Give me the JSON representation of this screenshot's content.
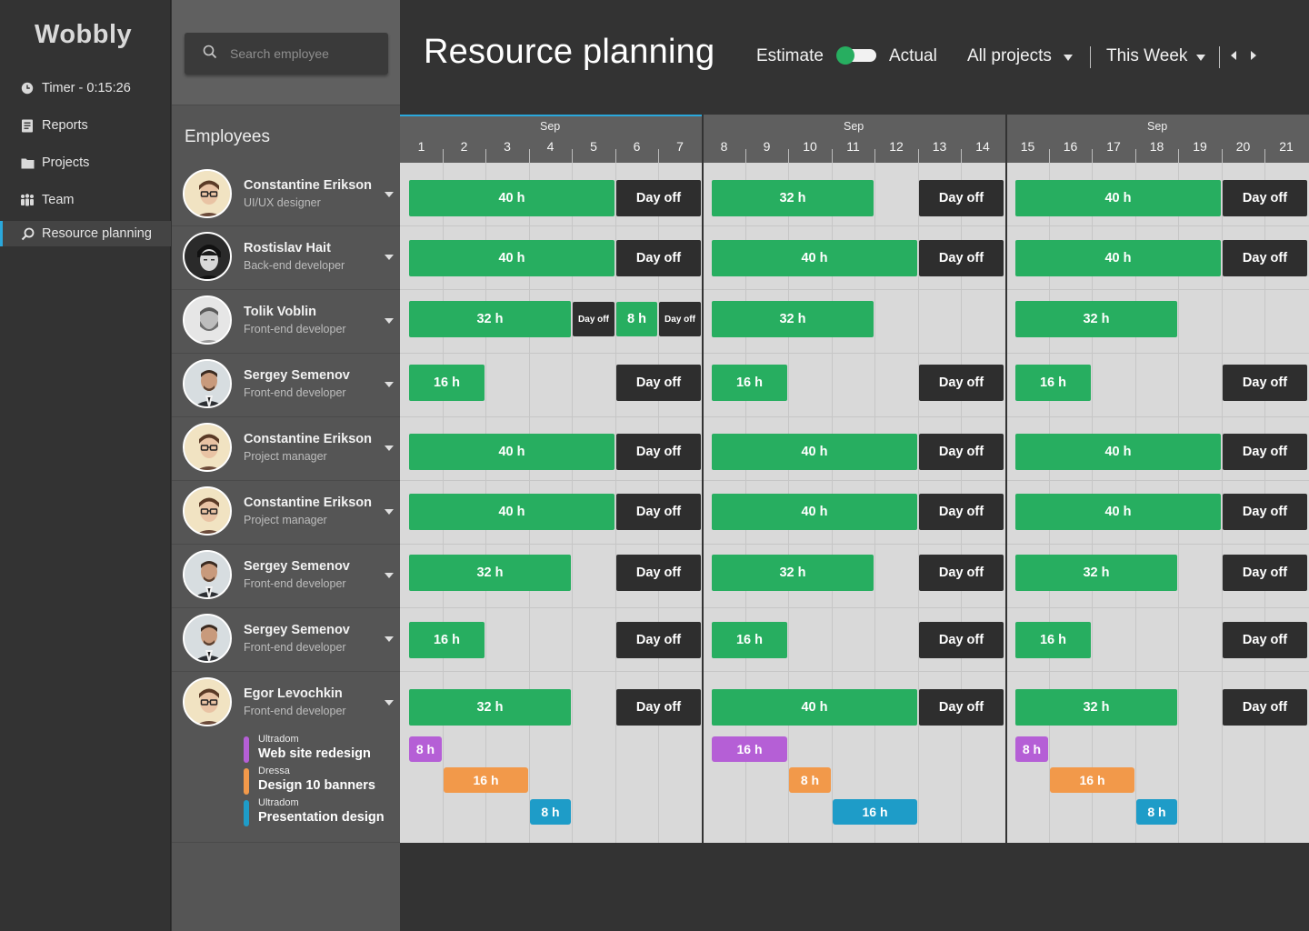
{
  "app": {
    "name": "Wobbly"
  },
  "sidebar": {
    "items": [
      {
        "label": "Timer - 0:15:26",
        "icon": "clock-icon"
      },
      {
        "label": "Reports",
        "icon": "reports-icon"
      },
      {
        "label": "Projects",
        "icon": "folder-icon"
      },
      {
        "label": "Team",
        "icon": "team-icon"
      },
      {
        "label": "Resource planning",
        "icon": "resource-planning-icon",
        "active": true
      }
    ]
  },
  "search": {
    "placeholder": "Search employee"
  },
  "employees_heading": "Employees",
  "header": {
    "title": "Resource planning",
    "estimate_label": "Estimate",
    "actual_label": "Actual",
    "projects_filter": "All projects",
    "period_filter": "This Week"
  },
  "calendar": {
    "months": [
      "Sep",
      "Sep",
      "Sep"
    ],
    "days": [
      "1",
      "2",
      "3",
      "4",
      "5",
      "6",
      "7",
      "8",
      "9",
      "10",
      "11",
      "12",
      "13",
      "14",
      "15",
      "16",
      "17",
      "18",
      "19",
      "20",
      "21"
    ]
  },
  "employees": [
    {
      "name": "Constantine Erikson",
      "role": "UI/UX designer",
      "avatar": "glasses"
    },
    {
      "name": "Rostislav Hait",
      "role": "Back-end developer",
      "avatar": "dark"
    },
    {
      "name": "Tolik Voblin",
      "role": "Front-end developer",
      "avatar": "beard"
    },
    {
      "name": "Sergey Semenov",
      "role": "Front-end developer",
      "avatar": "suit"
    },
    {
      "name": "Constantine Erikson",
      "role": "Project manager",
      "avatar": "glasses"
    },
    {
      "name": "Constantine Erikson",
      "role": "Project manager",
      "avatar": "glasses"
    },
    {
      "name": "Sergey Semenov",
      "role": "Front-end developer",
      "avatar": "suit"
    },
    {
      "name": "Sergey Semenov",
      "role": "Front-end developer",
      "avatar": "suit"
    },
    {
      "name": "Egor Levochkin",
      "role": "Front-end developer",
      "avatar": "glasses",
      "projects": [
        {
          "client": "Ultradom",
          "name": "Web site redesign",
          "color": "#b55fd6"
        },
        {
          "client": "Dressa",
          "name": "Design 10 banners",
          "color": "#f2994a"
        },
        {
          "client": "Ultradom",
          "name": "Presentation design",
          "color": "#1e9cc8"
        }
      ]
    }
  ],
  "colors": {
    "work": "#27ae60",
    "day_off": "#2e2e2e",
    "accent": "#2aa8dc"
  },
  "schedule": [
    [
      {
        "from": 1,
        "to": 5,
        "text": "40 h",
        "kind": "work"
      },
      {
        "from": 6,
        "to": 7,
        "text": "Day off",
        "kind": "off"
      },
      {
        "from": 8,
        "to": 11,
        "text": "32 h",
        "kind": "work"
      },
      {
        "from": 13,
        "to": 14,
        "text": "Day off",
        "kind": "off"
      },
      {
        "from": 15,
        "to": 19,
        "text": "40 h",
        "kind": "work"
      },
      {
        "from": 20,
        "to": 21,
        "text": "Day off",
        "kind": "off"
      }
    ],
    [
      {
        "from": 1,
        "to": 5,
        "text": "40 h",
        "kind": "work"
      },
      {
        "from": 6,
        "to": 7,
        "text": "Day off",
        "kind": "off"
      },
      {
        "from": 8,
        "to": 12,
        "text": "40 h",
        "kind": "work"
      },
      {
        "from": 13,
        "to": 14,
        "text": "Day off",
        "kind": "off"
      },
      {
        "from": 15,
        "to": 19,
        "text": "40 h",
        "kind": "work"
      },
      {
        "from": 20,
        "to": 21,
        "text": "Day off",
        "kind": "off"
      }
    ],
    [
      {
        "from": 1,
        "to": 4,
        "text": "32 h",
        "kind": "work"
      },
      {
        "from": 5,
        "to": 5,
        "text": "Day off",
        "kind": "off",
        "small": true
      },
      {
        "from": 6,
        "to": 6,
        "text": "8 h",
        "kind": "work"
      },
      {
        "from": 7,
        "to": 7,
        "text": "Day off",
        "kind": "off",
        "small": true
      },
      {
        "from": 8,
        "to": 11,
        "text": "32 h",
        "kind": "work"
      },
      {
        "from": 15,
        "to": 18,
        "text": "32 h",
        "kind": "work"
      }
    ],
    [
      {
        "from": 1,
        "to": 2,
        "text": "16 h",
        "kind": "work"
      },
      {
        "from": 6,
        "to": 7,
        "text": "Day off",
        "kind": "off"
      },
      {
        "from": 8,
        "to": 9,
        "text": "16 h",
        "kind": "work"
      },
      {
        "from": 13,
        "to": 14,
        "text": "Day off",
        "kind": "off"
      },
      {
        "from": 15,
        "to": 16,
        "text": "16 h",
        "kind": "work"
      },
      {
        "from": 20,
        "to": 21,
        "text": "Day off",
        "kind": "off"
      }
    ],
    [
      {
        "from": 1,
        "to": 5,
        "text": "40 h",
        "kind": "work"
      },
      {
        "from": 6,
        "to": 7,
        "text": "Day off",
        "kind": "off"
      },
      {
        "from": 8,
        "to": 12,
        "text": "40 h",
        "kind": "work"
      },
      {
        "from": 13,
        "to": 14,
        "text": "Day off",
        "kind": "off"
      },
      {
        "from": 15,
        "to": 19,
        "text": "40 h",
        "kind": "work"
      },
      {
        "from": 20,
        "to": 21,
        "text": "Day off",
        "kind": "off"
      }
    ],
    [
      {
        "from": 1,
        "to": 5,
        "text": "40 h",
        "kind": "work"
      },
      {
        "from": 6,
        "to": 7,
        "text": "Day off",
        "kind": "off"
      },
      {
        "from": 8,
        "to": 12,
        "text": "40 h",
        "kind": "work"
      },
      {
        "from": 13,
        "to": 14,
        "text": "Day off",
        "kind": "off"
      },
      {
        "from": 15,
        "to": 19,
        "text": "40 h",
        "kind": "work"
      },
      {
        "from": 20,
        "to": 21,
        "text": "Day off",
        "kind": "off"
      }
    ],
    [
      {
        "from": 1,
        "to": 4,
        "text": "32 h",
        "kind": "work"
      },
      {
        "from": 6,
        "to": 7,
        "text": "Day off",
        "kind": "off"
      },
      {
        "from": 8,
        "to": 11,
        "text": "32 h",
        "kind": "work"
      },
      {
        "from": 13,
        "to": 14,
        "text": "Day off",
        "kind": "off"
      },
      {
        "from": 15,
        "to": 18,
        "text": "32 h",
        "kind": "work"
      },
      {
        "from": 20,
        "to": 21,
        "text": "Day off",
        "kind": "off"
      }
    ],
    [
      {
        "from": 1,
        "to": 2,
        "text": "16 h",
        "kind": "work"
      },
      {
        "from": 6,
        "to": 7,
        "text": "Day off",
        "kind": "off"
      },
      {
        "from": 8,
        "to": 9,
        "text": "16 h",
        "kind": "work"
      },
      {
        "from": 13,
        "to": 14,
        "text": "Day off",
        "kind": "off"
      },
      {
        "from": 15,
        "to": 16,
        "text": "16 h",
        "kind": "work"
      },
      {
        "from": 20,
        "to": 21,
        "text": "Day off",
        "kind": "off"
      }
    ],
    [
      {
        "from": 1,
        "to": 4,
        "text": "32 h",
        "kind": "work"
      },
      {
        "from": 6,
        "to": 7,
        "text": "Day off",
        "kind": "off"
      },
      {
        "from": 8,
        "to": 12,
        "text": "40 h",
        "kind": "work"
      },
      {
        "from": 13,
        "to": 14,
        "text": "Day off",
        "kind": "off"
      },
      {
        "from": 15,
        "to": 18,
        "text": "32 h",
        "kind": "work"
      },
      {
        "from": 20,
        "to": 21,
        "text": "Day off",
        "kind": "off"
      }
    ]
  ],
  "project_schedule": [
    [
      {
        "from": 1,
        "to": 1,
        "text": "8 h"
      },
      {
        "from": 8,
        "to": 9,
        "text": "16 h"
      },
      {
        "from": 15,
        "to": 15,
        "text": "8 h"
      }
    ],
    [
      {
        "from": 2,
        "to": 3,
        "text": "16 h"
      },
      {
        "from": 10,
        "to": 10,
        "text": "8 h"
      },
      {
        "from": 16,
        "to": 17,
        "text": "16 h"
      }
    ],
    [
      {
        "from": 4,
        "to": 4,
        "text": "8 h"
      },
      {
        "from": 11,
        "to": 12,
        "text": "16 h"
      },
      {
        "from": 18,
        "to": 18,
        "text": "8 h"
      }
    ]
  ]
}
